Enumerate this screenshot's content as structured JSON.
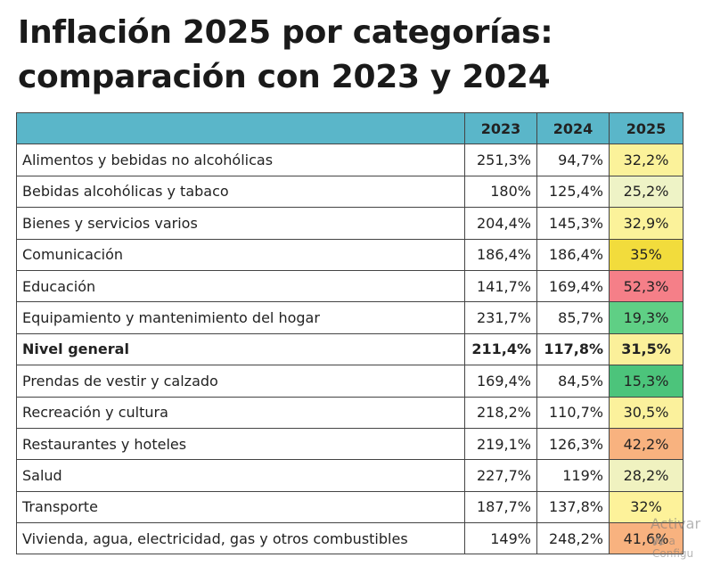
{
  "title": [
    "Inflación 2025 por categorías:",
    "comparación con 2023 y 2024"
  ],
  "table": {
    "header": [
      "",
      "2023",
      "2024",
      "2025"
    ],
    "rows": [
      [
        "Alimentos y bebidas no alcohólicas",
        "251,3%",
        "94,7%",
        "32,2%"
      ],
      [
        "Bebidas alcohólicas y tabaco",
        "180%",
        "125,4%",
        "25,2%"
      ],
      [
        "Bienes y servicios varios",
        "204,4%",
        "145,3%",
        "32,9%"
      ],
      [
        "Comunicación",
        "186,4%",
        "186,4%",
        "35%"
      ],
      [
        "Educación",
        "141,7%",
        "169,4%",
        "52,3%"
      ],
      [
        "Equipamiento y mantenimiento del hogar",
        "231,7%",
        "85,7%",
        "19,3%"
      ],
      [
        "Nivel general",
        "211,4%",
        "117,8%",
        "31,5%"
      ],
      [
        "Prendas de vestir y calzado",
        "169,4%",
        "84,5%",
        "15,3%"
      ],
      [
        "Recreación y cultura",
        "218,2%",
        "110,7%",
        "30,5%"
      ],
      [
        "Restaurantes y hoteles",
        "219,1%",
        "126,3%",
        "42,2%"
      ],
      [
        "Salud",
        "227,7%",
        "119%",
        "28,2%"
      ],
      [
        "Transporte",
        "187,7%",
        "137,8%",
        "32%"
      ],
      [
        "Vivienda, agua, electricidad, gas y otros combustibles",
        "149%",
        "248,2%",
        "41,6%"
      ]
    ],
    "highlight_colors": [
      "#fbf29a",
      "#eef3c6",
      "#fbf29a",
      "#f2dc3c",
      "#f57f88",
      "#5fcf85",
      "#fbf09a",
      "#4cc47b",
      "#fbf19c",
      "#f8b27f",
      "#f0f2c0",
      "#fdf29a",
      "#f8b27f"
    ],
    "bold_row": 6
  },
  "watermark": [
    "Activar W",
    "Ve a Configu"
  ]
}
